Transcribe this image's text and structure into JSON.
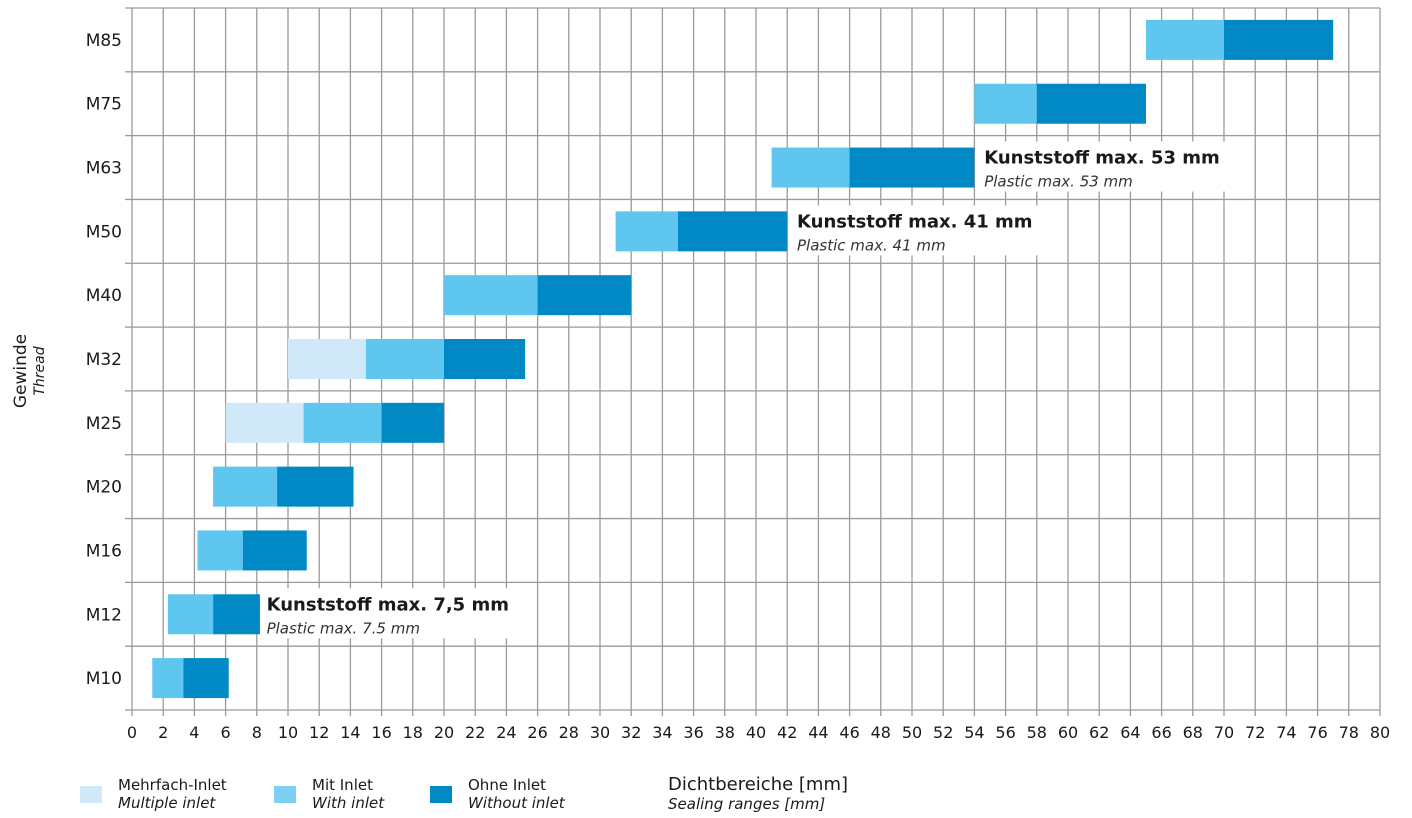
{
  "chart_data": {
    "type": "bar",
    "orientation": "horizontal-range",
    "categories": [
      "M10",
      "M12",
      "M16",
      "M20",
      "M25",
      "M32",
      "M40",
      "M50",
      "M63",
      "M75",
      "M85"
    ],
    "xlim": [
      0,
      80
    ],
    "xticks": [
      0,
      2,
      4,
      6,
      8,
      10,
      12,
      14,
      16,
      18,
      20,
      22,
      24,
      26,
      28,
      30,
      32,
      34,
      36,
      38,
      40,
      42,
      44,
      46,
      48,
      50,
      52,
      54,
      56,
      58,
      60,
      62,
      64,
      66,
      68,
      70,
      72,
      74,
      76,
      78,
      80
    ],
    "xlabel": "Dichtbereiche [mm]",
    "xlabel_en": "Sealing ranges [mm]",
    "ylabel": "Gewinde",
    "ylabel_en": "Thread",
    "grid": true,
    "series": [
      {
        "name": "Mehrfach-Inlet",
        "name_en": "Multiple inlet",
        "color": "#cfe9f8",
        "ranges": [
          null,
          null,
          null,
          null,
          [
            6,
            11
          ],
          [
            10,
            15
          ],
          null,
          null,
          null,
          null,
          null
        ]
      },
      {
        "name": "Mit Inlet",
        "name_en": "With inlet",
        "color": "#5ec6ef",
        "ranges": [
          [
            1.3,
            3.3
          ],
          [
            2.3,
            5.2
          ],
          [
            4.2,
            7.1
          ],
          [
            5.2,
            9.3
          ],
          [
            11,
            16
          ],
          [
            15,
            20
          ],
          [
            20,
            26
          ],
          [
            31,
            35
          ],
          [
            41,
            46
          ],
          [
            54,
            58
          ],
          [
            65,
            70
          ]
        ]
      },
      {
        "name": "Ohne Inlet",
        "name_en": "Without inlet",
        "color": "#0089c4",
        "ranges": [
          [
            3.3,
            6.2
          ],
          [
            5.2,
            8.2
          ],
          [
            7.1,
            11.2
          ],
          [
            9.3,
            14.2
          ],
          [
            16,
            20
          ],
          [
            20,
            25.2
          ],
          [
            26,
            32
          ],
          [
            35,
            42
          ],
          [
            46,
            54
          ],
          [
            58,
            65
          ],
          [
            70,
            77
          ]
        ]
      }
    ],
    "annotations": [
      {
        "category": "M12",
        "x": 8.5,
        "title": "Kunststoff max. 7,5 mm",
        "subtitle": "Plastic max. 7.5 mm"
      },
      {
        "category": "M50",
        "x": 42.5,
        "title": "Kunststoff max. 41 mm",
        "subtitle": "Plastic max. 41 mm"
      },
      {
        "category": "M63",
        "x": 54.5,
        "title": "Kunststoff max. 53 mm",
        "subtitle": "Plastic max. 53 mm"
      }
    ],
    "legend_position": "bottom-left",
    "gridline_color": "#9a9a9a"
  }
}
